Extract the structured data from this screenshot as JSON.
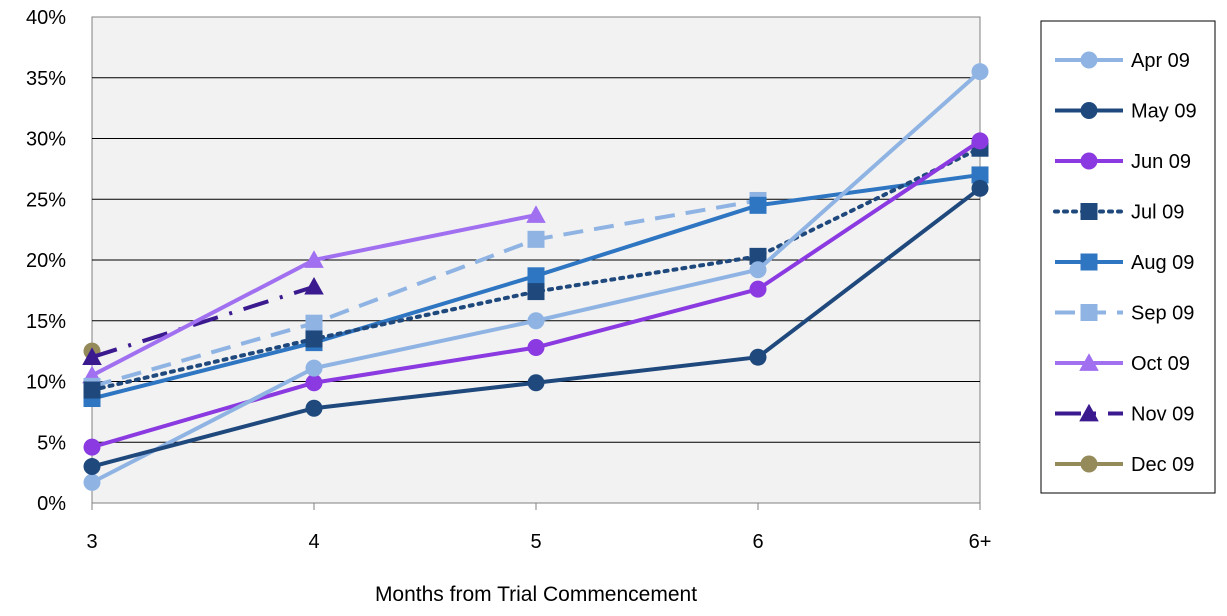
{
  "chart_data": {
    "type": "line",
    "title": "",
    "xlabel": "Months from Trial Commencement",
    "ylabel": "",
    "categories": [
      "3",
      "4",
      "5",
      "6",
      "6+"
    ],
    "ylim": [
      0,
      40
    ],
    "yticks": [
      "0%",
      "5%",
      "10%",
      "15%",
      "20%",
      "25%",
      "30%",
      "35%",
      "40%"
    ],
    "grid": "horizontal",
    "legend": "right",
    "series": [
      {
        "name": "Apr 09",
        "values": [
          1.7,
          11.1,
          15.0,
          19.2,
          35.5
        ],
        "color": "#8fb4e3",
        "marker": "circle",
        "dash": "solid"
      },
      {
        "name": "May 09",
        "values": [
          3.0,
          7.8,
          9.9,
          12.0,
          25.9
        ],
        "color": "#1f497d",
        "marker": "circle",
        "dash": "solid"
      },
      {
        "name": "Jun 09",
        "values": [
          4.6,
          9.9,
          12.8,
          17.6,
          29.8
        ],
        "color": "#8a3ae0",
        "marker": "circle",
        "dash": "solid"
      },
      {
        "name": "Jul 09",
        "values": [
          9.3,
          13.5,
          17.4,
          20.3,
          29.2
        ],
        "color": "#1f497d",
        "marker": "square",
        "dash": "dot"
      },
      {
        "name": "Aug 09",
        "values": [
          8.6,
          13.2,
          18.7,
          24.5,
          27.0
        ],
        "color": "#2e75c2",
        "marker": "square",
        "dash": "solid"
      },
      {
        "name": "Sep 09",
        "values": [
          9.6,
          14.8,
          21.7,
          24.9,
          null
        ],
        "color": "#8fb4e3",
        "marker": "square",
        "dash": "dash"
      },
      {
        "name": "Oct 09",
        "values": [
          10.5,
          20.0,
          23.7,
          null,
          null
        ],
        "color": "#a070f0",
        "marker": "triangle",
        "dash": "solid"
      },
      {
        "name": "Nov 09",
        "values": [
          12.0,
          17.8,
          null,
          null,
          null
        ],
        "color": "#3b1a8f",
        "marker": "triangle",
        "dash": "dashdot"
      },
      {
        "name": "Dec 09",
        "values": [
          12.5,
          null,
          null,
          null,
          null
        ],
        "color": "#958a5a",
        "marker": "circle",
        "dash": "solid"
      }
    ]
  }
}
